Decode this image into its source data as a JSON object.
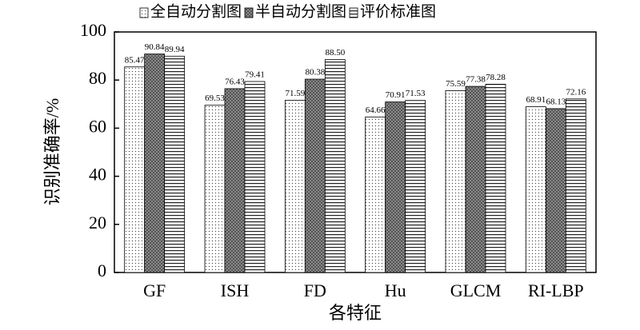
{
  "chart_data": {
    "type": "bar",
    "categories": [
      "GF",
      "ISH",
      "FD",
      "Hu",
      "GLCM",
      "RI-LBP"
    ],
    "series": [
      {
        "name": "全自动分割图",
        "color": "#ffffff",
        "pattern": "dots",
        "values": [
          85.47,
          69.53,
          71.59,
          64.66,
          75.59,
          68.91
        ],
        "value_labels": [
          "85.47",
          "69.53",
          "71.59",
          "64.66",
          "75.59",
          "68.91"
        ]
      },
      {
        "name": "半自动分割图",
        "color": "#9a9a9a",
        "pattern": "crosshatch",
        "values": [
          90.84,
          76.43,
          80.38,
          70.91,
          77.38,
          68.13
        ],
        "value_labels": [
          "90.84",
          "76.43",
          "80.38",
          "70.91",
          "77.38",
          "68.13"
        ]
      },
      {
        "name": "评价标准图",
        "color": "#ffffff",
        "pattern": "hlines",
        "values": [
          89.94,
          79.41,
          88.5,
          71.53,
          78.28,
          72.16
        ],
        "value_labels": [
          "89.94",
          "79.41",
          "88.50",
          "71.53",
          "78.28",
          "72.16"
        ]
      }
    ],
    "ylim": [
      0,
      100
    ],
    "yticks": [
      0,
      20,
      40,
      60,
      80,
      100
    ],
    "y_label": "识别准确率/%",
    "x_label": "各特征",
    "legend": "top"
  }
}
